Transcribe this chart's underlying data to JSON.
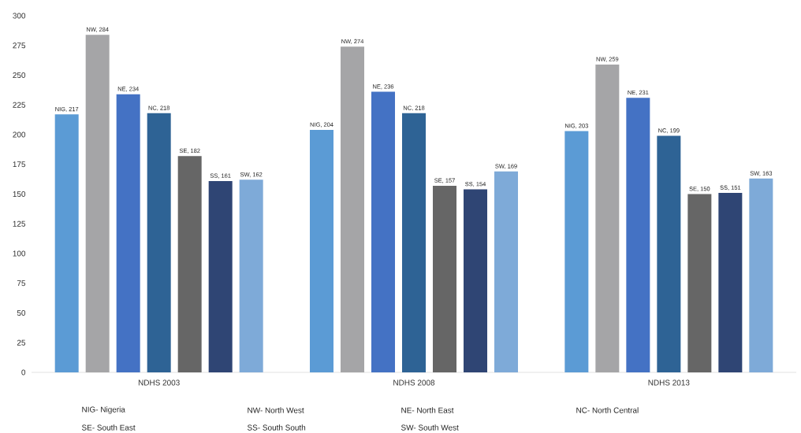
{
  "chart_data": {
    "type": "bar",
    "categories": [
      "NDHS 2003",
      "NDHS 2008",
      "NDHS 2013"
    ],
    "series": [
      {
        "color": "#5b9bd5",
        "values": [
          217,
          204,
          203
        ],
        "value_labels": [
          "NIG, 217",
          "NIG, 204",
          "NIG, 203"
        ]
      },
      {
        "color": "#a5a5a7",
        "values": [
          284,
          274,
          259
        ],
        "value_labels": [
          "NW, 284",
          "NW, 274",
          "NW, 259"
        ]
      },
      {
        "color": "#4472c4",
        "values": [
          234,
          236,
          231
        ],
        "value_labels": [
          "NE, 234",
          "NE, 236",
          "NE, 231"
        ]
      },
      {
        "color": "#2e6395",
        "values": [
          218,
          218,
          199
        ],
        "value_labels": [
          "NC, 218",
          "NC, 218",
          "NC, 199"
        ]
      },
      {
        "color": "#666666",
        "values": [
          182,
          157,
          150
        ],
        "value_labels": [
          "SE, 182",
          "SE, 157",
          "SE, 150"
        ]
      },
      {
        "color": "#2f4574",
        "values": [
          161,
          154,
          151
        ],
        "value_labels": [
          "SS, 161",
          "SS, 154",
          "SS, 151"
        ]
      },
      {
        "color": "#7eaad8",
        "values": [
          162,
          169,
          163
        ],
        "value_labels": [
          "SW, 162",
          "SW, 169",
          "SW, 163"
        ]
      }
    ],
    "ylim": [
      0,
      300
    ],
    "yticks": [
      0,
      25,
      50,
      75,
      100,
      125,
      150,
      175,
      200,
      225,
      250,
      275,
      300
    ],
    "annotations": [
      "NIG- Nigeria",
      "NW- North West",
      "NE- North East",
      "NC- North Central",
      "SE- South East",
      "SS- South South",
      "SW- South West"
    ]
  }
}
